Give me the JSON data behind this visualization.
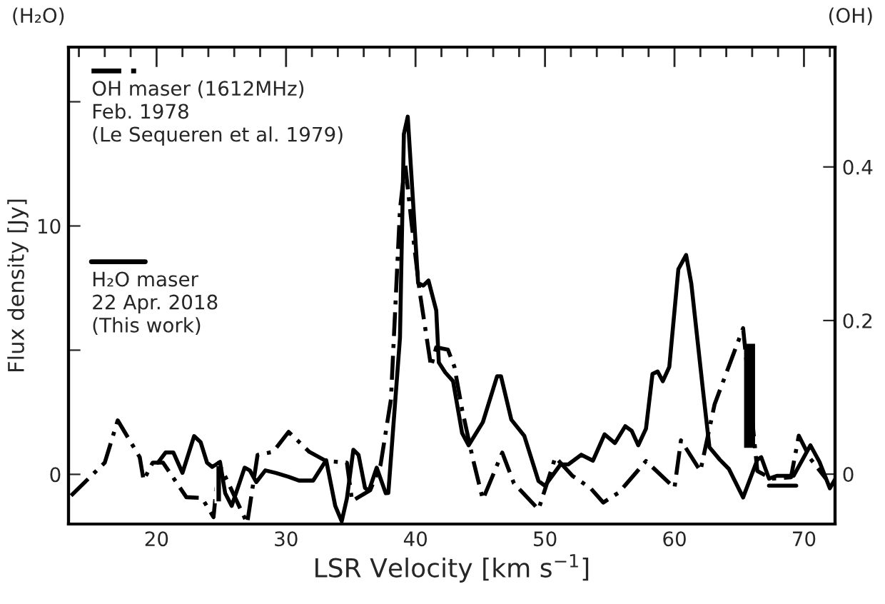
{
  "chart_data": {
    "type": "line",
    "xlabel": "LSR Velocity [km s$^{−1}$]",
    "ylabel": "Flux density [Jy]",
    "y2label": "(OH)",
    "annotations": [
      "(H₂O)"
    ],
    "xlim": [
      13.2,
      72.4
    ],
    "xticks": [
      {
        "value": 14,
        "label": null
      },
      {
        "value": 16,
        "label": null
      },
      {
        "value": 18,
        "label": null
      },
      20,
      {
        "value": 22,
        "label": null
      },
      {
        "value": 24,
        "label": null
      },
      {
        "value": 26,
        "label": null
      },
      {
        "value": 28,
        "label": null
      },
      30,
      {
        "value": 32,
        "label": null
      },
      {
        "value": 34,
        "label": null
      },
      {
        "value": 36,
        "label": null
      },
      {
        "value": 38,
        "label": null
      },
      40,
      {
        "value": 42,
        "label": null
      },
      {
        "value": 44,
        "label": null
      },
      {
        "value": 46,
        "label": null
      },
      {
        "value": 48,
        "label": null
      },
      50,
      {
        "value": 52,
        "label": null
      },
      {
        "value": 54,
        "label": null
      },
      {
        "value": 56,
        "label": null
      },
      {
        "value": 58,
        "label": null
      },
      60,
      {
        "value": 62,
        "label": null
      },
      {
        "value": 64,
        "label": null
      },
      {
        "value": 66,
        "label": null
      },
      {
        "value": 68,
        "label": null
      },
      70,
      {
        "value": 72,
        "label": null
      }
    ],
    "ylim": [
      -2.0,
      17.2
    ],
    "yticks": [
      0,
      {
        "value": 5,
        "label": null
      },
      10,
      {
        "value": 15,
        "label": null
      }
    ],
    "y2lim": [
      -0.065,
      0.556
    ],
    "y2ticks": [
      0,
      0.2,
      0.4
    ],
    "legend": "top left",
    "grid": false,
    "series": [
      {
        "name": "OH maser (1612MHz)\nFeb. 1978\n(Le Sequeren et al. 1979)",
        "axis": "y2",
        "color": "#000000",
        "line_style": "dashed",
        "x": [
          13.4,
          16.0,
          17.0,
          18.7,
          19.0,
          19.7,
          20.5,
          22.3,
          23.5,
          24.4,
          24.8,
          27.0,
          27.8,
          29.0,
          30.2,
          31.8,
          33.1,
          34.7,
          35.1,
          36.5,
          37.3,
          38.1,
          38.8,
          39.2,
          39.7,
          40.3,
          41.2,
          41.6,
          42.5,
          43.0,
          43.6,
          44.4,
          45.2,
          46.7,
          47.6,
          49.5,
          50.8,
          52.1,
          53.5,
          54.5,
          55.7,
          57.8,
          60.0,
          60.5,
          62.0,
          63.1,
          65.3,
          66.4,
          67.5,
          69.0,
          69.6,
          70.5,
          71.7
        ],
        "values": [
          -0.028,
          0.015,
          0.07,
          0.022,
          -0.008,
          0.015,
          0.015,
          -0.03,
          -0.031,
          -0.056,
          0.015,
          -0.064,
          0.025,
          0.029,
          0.055,
          0.029,
          0.017,
          0.015,
          -0.035,
          -0.021,
          0.012,
          0.097,
          0.345,
          0.404,
          0.326,
          0.24,
          0.14,
          0.165,
          0.162,
          0.14,
          0.084,
          0.022,
          -0.033,
          0.028,
          -0.012,
          -0.046,
          0.022,
          -0.002,
          -0.018,
          -0.037,
          -0.024,
          0.017,
          -0.018,
          0.044,
          0.004,
          0.091,
          0.19,
          0.004,
          -0.006,
          -0.004,
          0.05,
          0.02,
          -0.006
        ]
      },
      {
        "name": "H₂O maser\n22 Apr. 2018\n(This work)",
        "color": "#000000",
        "line_style": "solid",
        "x": [
          20.1,
          20.7,
          21.3,
          22.0,
          22.9,
          23.4,
          23.9,
          24.3,
          24.9,
          25.3,
          25.8,
          26.4,
          26.8,
          27.2,
          27.7,
          28.4,
          29.2,
          30.2,
          31.0,
          32.1,
          33.1,
          33.8,
          34.3,
          34.7,
          35.2,
          35.6,
          36.1,
          36.4,
          37.0,
          37.7,
          37.9,
          38.8,
          39.1,
          39.4,
          40.2,
          40.6,
          41.0,
          41.6,
          41.8,
          42.3,
          42.9,
          43.6,
          44.1,
          45.2,
          46.3,
          46.6,
          47.4,
          48.4,
          49.5,
          50.0,
          51.2,
          51.8,
          52.8,
          53.7,
          54.6,
          55.4,
          56.2,
          56.7,
          57.2,
          57.8,
          58.3,
          58.7,
          59.1,
          59.6,
          60.3,
          60.9,
          61.3,
          62.2,
          62.7,
          63.5,
          64.2,
          65.3,
          66.4,
          66.7,
          67.3,
          67.9,
          69.2,
          70.5,
          71.2,
          72.0,
          72.4
        ],
        "values": [
          0.47,
          0.88,
          0.88,
          0.06,
          1.54,
          1.3,
          0.47,
          0.3,
          0.5,
          -0.76,
          -1.27,
          -0.35,
          0.27,
          0.16,
          -0.31,
          0.16,
          0.06,
          -0.1,
          -0.25,
          -0.25,
          0.57,
          -1.27,
          -1.89,
          -0.97,
          0.99,
          0.78,
          -0.55,
          -0.66,
          0.27,
          -0.76,
          -0.75,
          5.5,
          13.7,
          14.4,
          7.7,
          7.6,
          7.8,
          6.6,
          4.5,
          4.1,
          3.75,
          1.66,
          1.17,
          2.1,
          3.95,
          3.95,
          2.2,
          1.55,
          -0.27,
          -0.46,
          0.4,
          0.4,
          0.79,
          0.55,
          1.61,
          1.26,
          1.94,
          1.75,
          1.17,
          1.84,
          4.04,
          4.14,
          3.75,
          4.33,
          8.26,
          8.83,
          7.68,
          3.39,
          1.09,
          0.59,
          0.22,
          -0.93,
          0.59,
          0.69,
          -0.17,
          -0.06,
          -0.06,
          1.17,
          0.5,
          -0.56,
          -0.2
        ]
      },
      {
        "type": "bar",
        "color": "#000000",
        "x": [
          24.8
        ],
        "base": [
          -1.13
        ],
        "values": [
          1.5
        ]
      },
      {
        "type": "bar",
        "axis": "y2",
        "color": "#000000",
        "x": [
          65.8
        ],
        "base": [
          0.033
        ],
        "values": [
          0.138
        ]
      },
      {
        "axis": "y2",
        "color": "#000000",
        "line_style": "solid",
        "x": [
          67.3,
          69.4
        ],
        "values": [
          -0.015,
          -0.015
        ]
      }
    ]
  }
}
